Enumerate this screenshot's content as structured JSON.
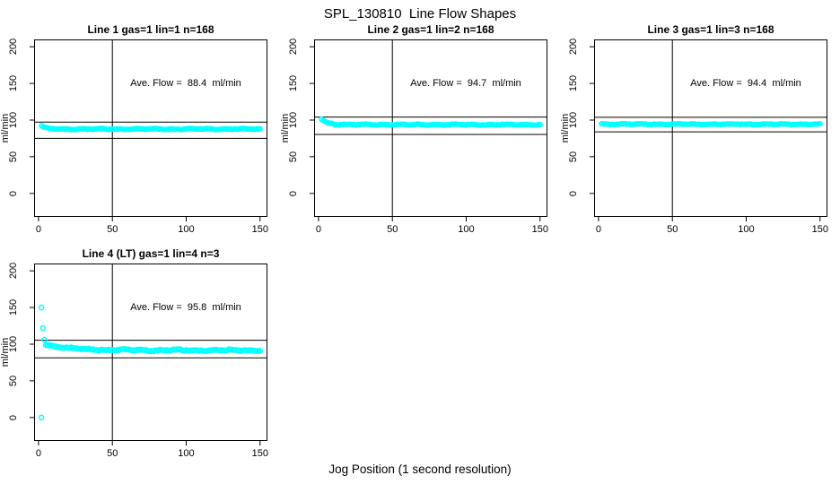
{
  "figure": {
    "title": "SPL_130810  Line Flow Shapes",
    "xlabel": "Jog Position (1 second resolution)",
    "background_color": "#ffffff",
    "line_color": "#000000",
    "point_color": "#00FFFF"
  },
  "chart_data": [
    {
      "type": "scatter",
      "title": "Line 1 gas=1 lin=1 n=168",
      "annotation": "Ave. Flow =  88.4  ml/min",
      "ave_flow_ml_min": 88.4,
      "n": 168,
      "ylabel": "ml/min",
      "xlim": [
        -3,
        155
      ],
      "ylim": [
        -32,
        210
      ],
      "xticks": [
        0,
        50,
        100,
        150
      ],
      "yticks": [
        0,
        50,
        100,
        150,
        200
      ],
      "vline_x": 50,
      "hlines": [
        97.2,
        75.1
      ],
      "point_color": "#00FFFF",
      "marker_radius": 2.4,
      "series": {
        "name": "flow",
        "x_start": 2,
        "x_end": 150,
        "x_step": 1,
        "baseline": 87.8,
        "transient_amp": 4.5,
        "transient_tau": 2.5,
        "noise": 0.8,
        "seed": 11
      },
      "extra_points": []
    },
    {
      "type": "scatter",
      "title": "Line 2 gas=1 lin=2 n=168",
      "annotation": "Ave. Flow =  94.7  ml/min",
      "ave_flow_ml_min": 94.7,
      "n": 168,
      "ylabel": "ml/min",
      "xlim": [
        -3,
        155
      ],
      "ylim": [
        -32,
        210
      ],
      "xticks": [
        0,
        50,
        100,
        150
      ],
      "yticks": [
        0,
        50,
        100,
        150,
        200
      ],
      "vline_x": 50,
      "hlines": [
        104.2,
        80.5
      ],
      "point_color": "#00FFFF",
      "marker_radius": 2.4,
      "series": {
        "name": "flow",
        "x_start": 2,
        "x_end": 150,
        "x_step": 1,
        "baseline": 93.8,
        "transient_amp": 8.0,
        "transient_tau": 4.0,
        "noise": 0.8,
        "seed": 23
      },
      "extra_points": []
    },
    {
      "type": "scatter",
      "title": "Line 3 gas=1 lin=3 n=168",
      "annotation": "Ave. Flow =  94.4  ml/min",
      "ave_flow_ml_min": 94.4,
      "n": 168,
      "ylabel": "ml/min",
      "xlim": [
        -3,
        155
      ],
      "ylim": [
        -32,
        210
      ],
      "xticks": [
        0,
        50,
        100,
        150
      ],
      "yticks": [
        0,
        50,
        100,
        150,
        200
      ],
      "vline_x": 50,
      "hlines": [
        103.8,
        83.9
      ],
      "point_color": "#00FFFF",
      "marker_radius": 2.4,
      "series": {
        "name": "flow",
        "x_start": 2,
        "x_end": 150,
        "x_step": 1,
        "baseline": 94.4,
        "transient_amp": 0.5,
        "transient_tau": 3.0,
        "noise": 0.7,
        "seed": 37
      },
      "extra_points": []
    },
    {
      "type": "scatter",
      "title": "Line 4 (LT) gas=1 lin=4 n=3",
      "annotation": "Ave. Flow =  95.8  ml/min",
      "ave_flow_ml_min": 95.8,
      "n": 3,
      "ylabel": "ml/min",
      "xlim": [
        -3,
        155
      ],
      "ylim": [
        -32,
        210
      ],
      "xticks": [
        0,
        50,
        100,
        150
      ],
      "yticks": [
        0,
        50,
        100,
        150,
        200
      ],
      "vline_x": 50,
      "hlines": [
        105.4,
        81.4
      ],
      "point_color": "#00FFFF",
      "marker_radius": 2.6,
      "series": {
        "name": "flow",
        "x_start": 5,
        "x_end": 150,
        "x_step": 1,
        "baseline": 91.8,
        "transient_amp": 8.0,
        "transient_tau": 15.0,
        "noise": 1.3,
        "seed": 53
      },
      "extra_points": [
        [
          2,
          150
        ],
        [
          2,
          0
        ],
        [
          3,
          122
        ],
        [
          4,
          106
        ]
      ]
    }
  ]
}
